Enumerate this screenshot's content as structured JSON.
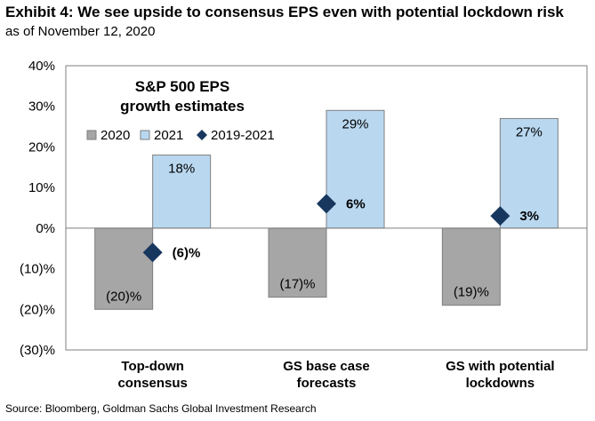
{
  "header": {
    "title": "Exhibit 4: We see upside to consensus EPS even with potential lockdown risk",
    "subtitle": "as of November 12, 2020"
  },
  "footer": {
    "source": "Source: Bloomberg, Goldman Sachs Global Investment Research"
  },
  "chart_data": {
    "type": "bar",
    "annotation_title": [
      "S&P 500 EPS",
      "growth estimates"
    ],
    "categories": [
      [
        "Top-down",
        "consensus"
      ],
      [
        "GS base case",
        "forecasts"
      ],
      [
        "GS with potential",
        "lockdowns"
      ]
    ],
    "series": [
      {
        "name": "2020",
        "type": "bar",
        "color": "#a6a6a6",
        "values": [
          -20,
          -17,
          -19
        ],
        "labels": [
          "(20)%",
          "(17)%",
          "(19)%"
        ]
      },
      {
        "name": "2021",
        "type": "bar",
        "color": "#b9d8f0",
        "values": [
          18,
          29,
          27
        ],
        "labels": [
          "18%",
          "29%",
          "27%"
        ]
      },
      {
        "name": "2019-2021",
        "type": "marker",
        "marker": "diamond",
        "color": "#17375e",
        "values": [
          -6,
          6,
          3
        ],
        "labels": [
          "(6)%",
          "6%",
          "3%"
        ]
      }
    ],
    "ylim": [
      -30,
      40
    ],
    "yticks": [
      40,
      30,
      20,
      10,
      0,
      -10,
      -20,
      -30
    ],
    "ytick_labels": [
      "40%",
      "30%",
      "20%",
      "10%",
      "0%",
      "(10)%",
      "(20)%",
      "(30)%"
    ],
    "xlabel": "",
    "ylabel": "",
    "grid": false,
    "legend_position": "top-left"
  }
}
